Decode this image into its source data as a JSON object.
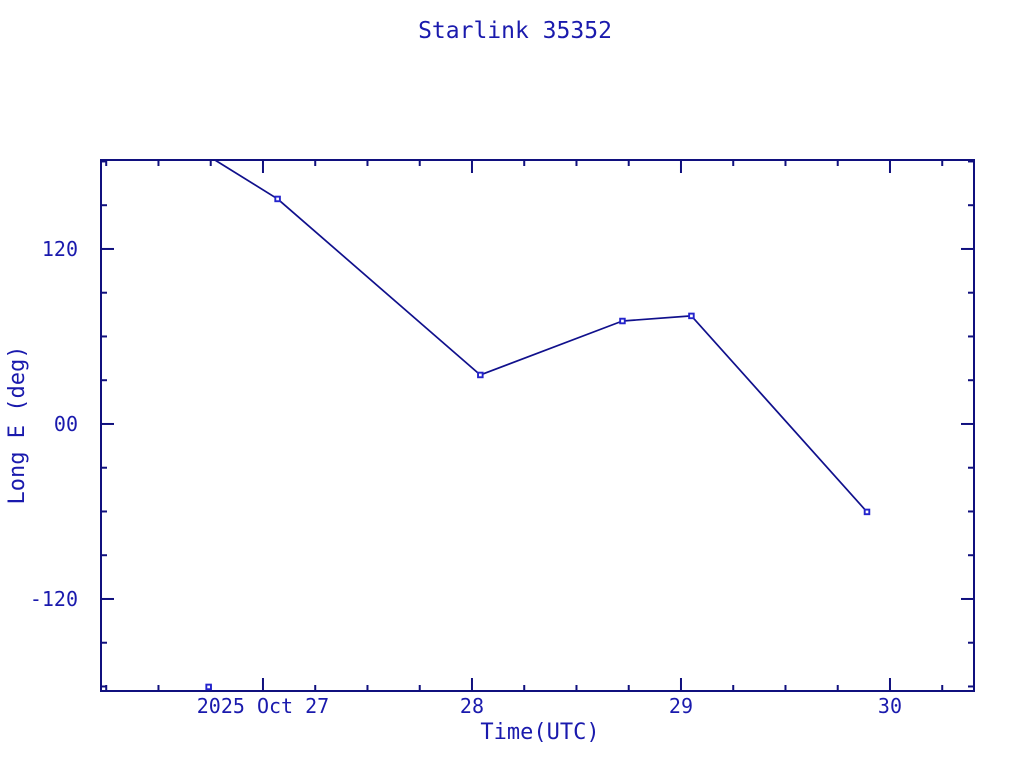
{
  "chart_data": {
    "type": "line",
    "title": "Starlink 35352",
    "xlabel": "Time(UTC)",
    "ylabel": "Long E (deg)",
    "xlim": [
      26.225,
      30.402
    ],
    "ylim": [
      -183.1,
      181.0
    ],
    "grid": false,
    "legend": null,
    "x_major_ticks": [
      {
        "value": 27,
        "label": "2025 Oct 27"
      },
      {
        "value": 28,
        "label": "28"
      },
      {
        "value": 29,
        "label": "29"
      },
      {
        "value": 30,
        "label": "30"
      }
    ],
    "x_minor_step": 0.25,
    "y_major_ticks": [
      {
        "value": 120,
        "label": "120"
      },
      {
        "value": 0,
        "label": "00"
      },
      {
        "value": -120,
        "label": "-120"
      }
    ],
    "y_minor_step": 30,
    "series": [
      {
        "name": "Long E",
        "marker": "open-square",
        "points": [
          {
            "t": 26.74,
            "v": -180.3
          },
          {
            "t": 27.07,
            "v": 154.3
          },
          {
            "t": 28.04,
            "v": 33.6
          },
          {
            "t": 28.72,
            "v": 70.6
          },
          {
            "t": 29.05,
            "v": 74.1
          },
          {
            "t": 29.89,
            "v": -60.3
          }
        ],
        "wrap_entry": {
          "t": 26.77,
          "v": 181.0
        },
        "connect_from_index": 1
      }
    ],
    "colors": {
      "background": "#ffffff",
      "frame": "#10107e",
      "text": "#1a1aad",
      "line": "#10108c",
      "marker": "#2424cc"
    }
  }
}
